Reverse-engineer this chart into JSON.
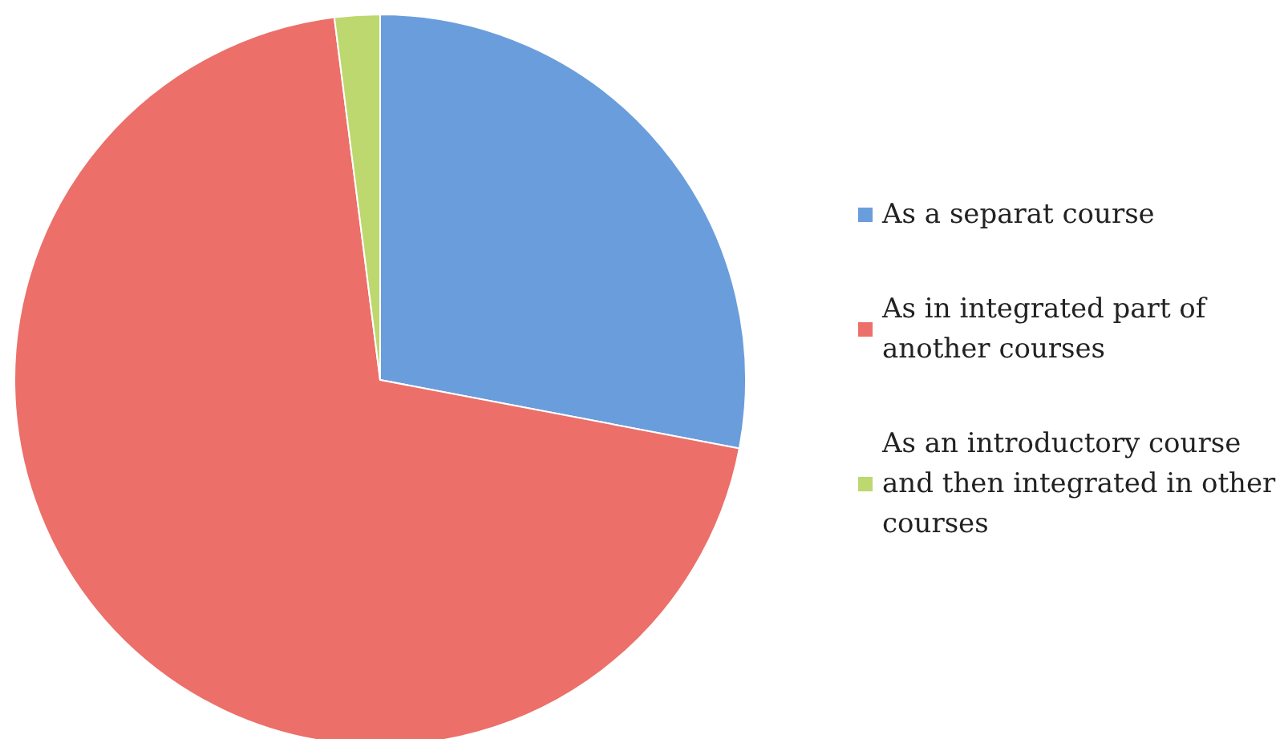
{
  "chart_data": {
    "type": "pie",
    "categories": [
      "As a separat course",
      "As in integrated part of another courses",
      "As an introductory course and then integrated in other courses"
    ],
    "values": [
      28,
      70,
      2
    ],
    "colors": [
      "#6a9ddc",
      "#ec6f6a",
      "#bcd86e"
    ],
    "legend": "right"
  }
}
